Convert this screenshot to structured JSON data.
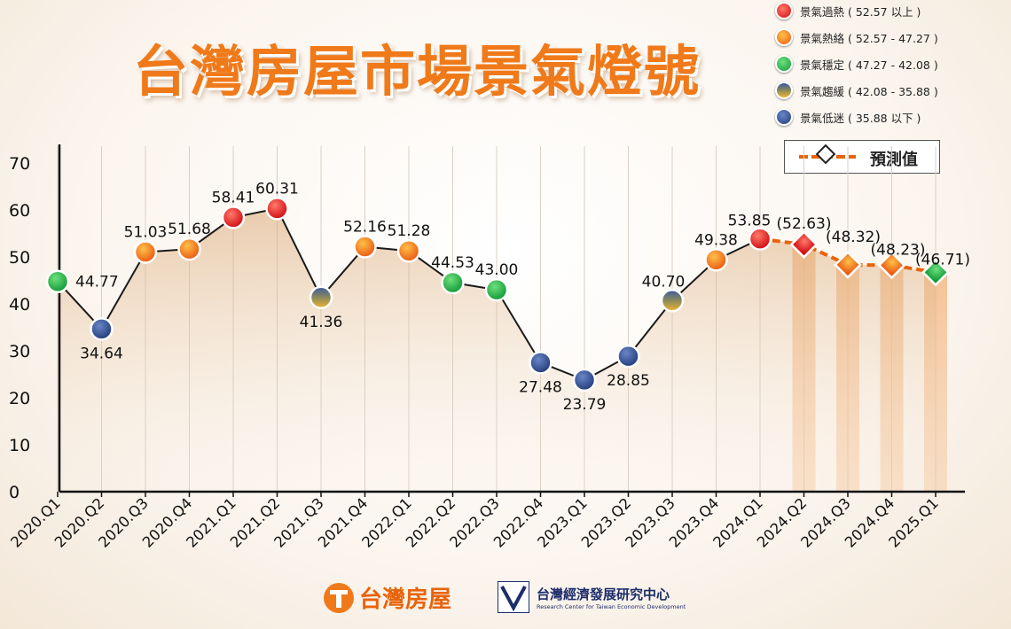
{
  "title": "台灣房屋市場景氣燈號",
  "legend": [
    {
      "label": "景氣過熱 ( 52.57 以上 )",
      "status": "overheat"
    },
    {
      "label": "景氣熱絡 ( 52.57 - 47.27 )",
      "status": "hot"
    },
    {
      "label": "景氣穩定 ( 47.27 - 42.08 )",
      "status": "stable"
    },
    {
      "label": "景氣趨緩 ( 42.08 - 35.88 )",
      "status": "slowing"
    },
    {
      "label": "景氣低迷 ( 35.88 以下 )",
      "status": "sluggish"
    }
  ],
  "forecast_legend_label": "預測值",
  "status_colors": {
    "overheat": "#e8151b",
    "hot": "#f58a1f",
    "stable": "#22b04a",
    "slowing": "#8a8a4a",
    "sluggish": "#2b4a8e"
  },
  "chart_data": {
    "type": "line",
    "y_ticks": [
      "0",
      "10",
      "20",
      "30",
      "40",
      "50",
      "60",
      "70"
    ],
    "ylim": [
      0,
      70
    ],
    "grid": "vertical",
    "categories": [
      "2020.Q1",
      "2020.Q2",
      "2020.Q3",
      "2020.Q4",
      "2021.Q1",
      "2021.Q2",
      "2021.Q3",
      "2021.Q4",
      "2022.Q1",
      "2022.Q2",
      "2022.Q3",
      "2022.Q4",
      "2023.Q1",
      "2023.Q2",
      "2023.Q3",
      "2023.Q4",
      "2024.Q1",
      "2024.Q2",
      "2024.Q3",
      "2024.Q4",
      "2025.Q1"
    ],
    "actual": {
      "values": [
        44.77,
        34.64,
        51.03,
        51.68,
        58.41,
        60.31,
        41.36,
        52.16,
        51.28,
        44.53,
        43.0,
        27.48,
        23.79,
        28.85,
        40.7,
        49.38,
        53.85
      ],
      "labels": [
        "44.77",
        "34.64",
        "51.03",
        "51.68",
        "58.41",
        "60.31",
        "41.36",
        "52.16",
        "51.28",
        "44.53",
        "43.00",
        "27.48",
        "23.79",
        "28.85",
        "40.70",
        "49.38",
        "53.85"
      ],
      "status": [
        "stable",
        "sluggish",
        "hot",
        "hot",
        "overheat",
        "overheat",
        "slowing",
        "hot",
        "hot",
        "stable",
        "stable",
        "sluggish",
        "sluggish",
        "sluggish",
        "slowing",
        "hot",
        "overheat"
      ]
    },
    "forecast": {
      "values": [
        52.63,
        48.32,
        48.23,
        46.71
      ],
      "labels": [
        "(52.63)",
        "(48.32)",
        "(48.23)",
        "(46.71)"
      ],
      "status": [
        "overheat",
        "hot",
        "hot",
        "stable"
      ]
    }
  },
  "footer": {
    "brand": "台灣房屋",
    "org_zh": "台灣經濟發展研究中心",
    "org_en": "Research Center for Taiwan Economic Development"
  }
}
